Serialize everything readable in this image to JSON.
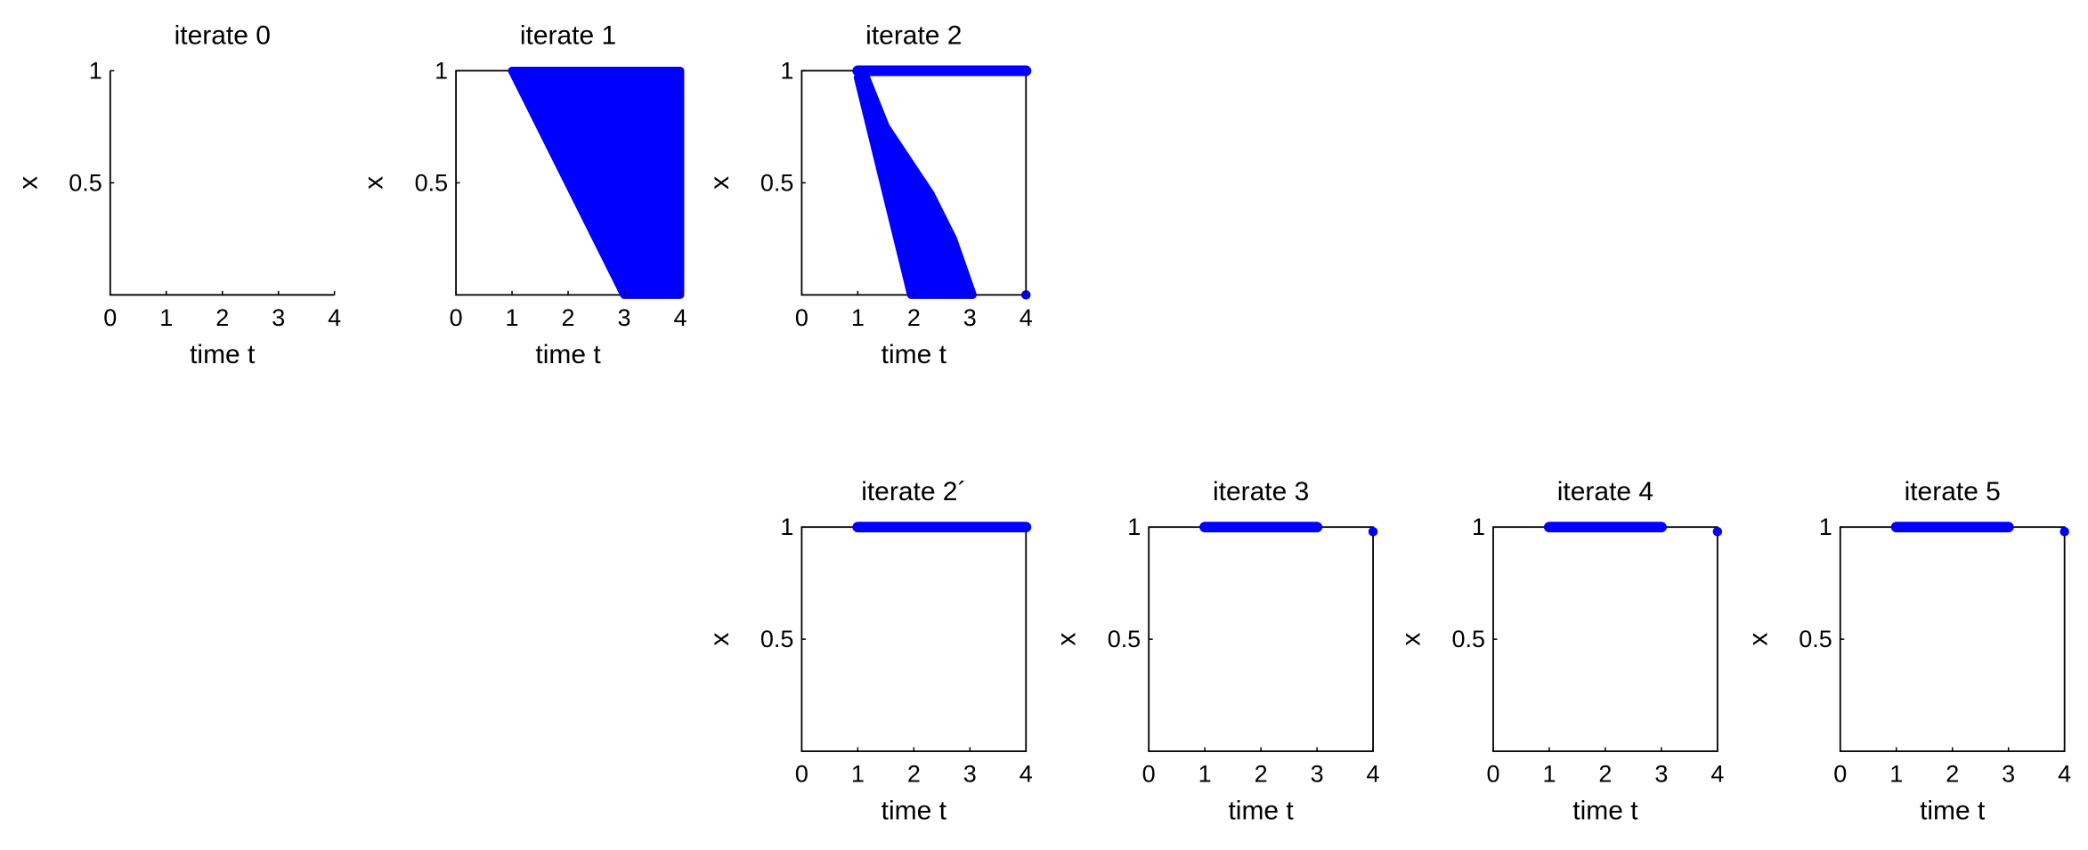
{
  "chart_data": [
    {
      "type": "scatter",
      "title": "iterate 0",
      "xlabel": "time t",
      "ylabel": "x",
      "xlim": [
        0,
        4
      ],
      "ylim": [
        0,
        1
      ],
      "xticks": [
        0,
        1,
        2,
        3,
        4
      ],
      "yticks": [
        0.5,
        1
      ],
      "box": false,
      "color": "#0000ff",
      "series": []
    },
    {
      "type": "scatter",
      "title": "iterate 1",
      "xlabel": "time t",
      "ylabel": "x",
      "xlim": [
        0,
        4
      ],
      "ylim": [
        0,
        1
      ],
      "xticks": [
        0,
        1,
        2,
        3,
        4
      ],
      "yticks": [
        0.5,
        1
      ],
      "box": true,
      "color": "#0000ff",
      "series": [
        {
          "style": "region",
          "x": [
            1,
            4,
            4,
            3
          ],
          "y": [
            1,
            1,
            0,
            0
          ]
        }
      ]
    },
    {
      "type": "scatter",
      "title": "iterate 2",
      "xlabel": "time t",
      "ylabel": "x",
      "xlim": [
        0,
        4
      ],
      "ylim": [
        0,
        1
      ],
      "xticks": [
        0,
        1,
        2,
        3,
        4
      ],
      "yticks": [
        0.5,
        1
      ],
      "box": true,
      "color": "#0000ff",
      "series": [
        {
          "style": "segment",
          "x": [
            1,
            4
          ],
          "y": [
            1,
            1
          ]
        },
        {
          "style": "region",
          "x": [
            1,
            1.1,
            1.5,
            2.3,
            2.7,
            3.05,
            1.95
          ],
          "y": [
            0.97,
            1,
            0.75,
            0.45,
            0.25,
            0,
            0
          ]
        },
        {
          "style": "point",
          "x": [
            4
          ],
          "y": [
            0
          ]
        }
      ]
    },
    {
      "type": "scatter",
      "title": "iterate 2´",
      "xlabel": "time t",
      "ylabel": "x",
      "xlim": [
        0,
        4
      ],
      "ylim": [
        0,
        1
      ],
      "xticks": [
        0,
        1,
        2,
        3,
        4
      ],
      "yticks": [
        0.5,
        1
      ],
      "box": true,
      "color": "#0000ff",
      "series": [
        {
          "style": "segment",
          "x": [
            1,
            4
          ],
          "y": [
            1,
            1
          ]
        }
      ]
    },
    {
      "type": "scatter",
      "title": "iterate 3",
      "xlabel": "time t",
      "ylabel": "x",
      "xlim": [
        0,
        4
      ],
      "ylim": [
        0,
        1
      ],
      "xticks": [
        0,
        1,
        2,
        3,
        4
      ],
      "yticks": [
        0.5,
        1
      ],
      "box": true,
      "color": "#0000ff",
      "series": [
        {
          "style": "segment",
          "x": [
            1,
            3
          ],
          "y": [
            1,
            1
          ]
        },
        {
          "style": "point",
          "x": [
            4
          ],
          "y": [
            0.98
          ]
        }
      ]
    },
    {
      "type": "scatter",
      "title": "iterate 4",
      "xlabel": "time t",
      "ylabel": "x",
      "xlim": [
        0,
        4
      ],
      "ylim": [
        0,
        1
      ],
      "xticks": [
        0,
        1,
        2,
        3,
        4
      ],
      "yticks": [
        0.5,
        1
      ],
      "box": true,
      "color": "#0000ff",
      "series": [
        {
          "style": "segment",
          "x": [
            1,
            3
          ],
          "y": [
            1,
            1
          ]
        },
        {
          "style": "point",
          "x": [
            4
          ],
          "y": [
            0.98
          ]
        }
      ]
    },
    {
      "type": "scatter",
      "title": "iterate 5",
      "xlabel": "time t",
      "ylabel": "x",
      "xlim": [
        0,
        4
      ],
      "ylim": [
        0,
        1
      ],
      "xticks": [
        0,
        1,
        2,
        3,
        4
      ],
      "yticks": [
        0.5,
        1
      ],
      "box": true,
      "color": "#0000ff",
      "series": [
        {
          "style": "segment",
          "x": [
            1,
            3
          ],
          "y": [
            1,
            1
          ]
        },
        {
          "style": "point",
          "x": [
            4
          ],
          "y": [
            0.98
          ]
        }
      ]
    }
  ]
}
